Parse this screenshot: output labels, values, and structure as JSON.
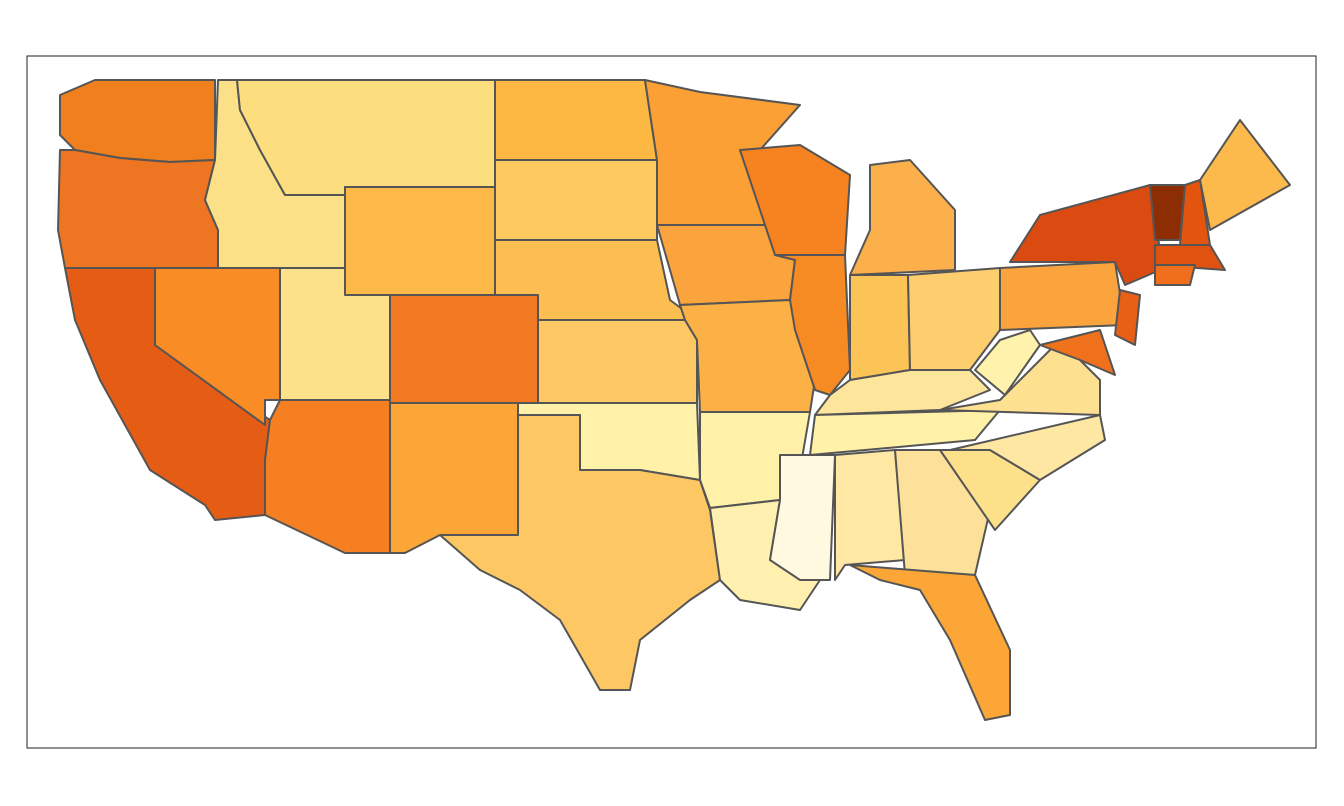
{
  "map": {
    "regions": [
      {
        "color": "#f07f1e"
      },
      {
        "color": "#ee7522"
      },
      {
        "color": "#e55d14"
      },
      {
        "color": "#f98c25"
      },
      {
        "color": "#fce088"
      },
      {
        "color": "#fdde7f"
      },
      {
        "color": "#fcb948"
      },
      {
        "color": "#fde08a"
      },
      {
        "color": "#f07921"
      },
      {
        "color": "#f57f21"
      },
      {
        "color": "#fba637"
      },
      {
        "color": "#fcb843"
      },
      {
        "color": "#fdc961"
      },
      {
        "color": "#fcbe51"
      },
      {
        "color": "#fdc864"
      },
      {
        "color": "#fff1a8"
      },
      {
        "color": "#fdc864"
      },
      {
        "color": "#fba035"
      },
      {
        "color": "#fba33c"
      },
      {
        "color": "#fcb147"
      },
      {
        "color": "#fff1a8"
      },
      {
        "color": "#fff0b0"
      },
      {
        "color": "#f68320"
      },
      {
        "color": "#f68a23"
      },
      {
        "color": "#fcb04b"
      },
      {
        "color": "#fcc357"
      },
      {
        "color": "#fdce6d"
      },
      {
        "color": "#fde59c"
      },
      {
        "color": "#fff1a8"
      },
      {
        "color": "#fffadf"
      },
      {
        "color": "#fee8a4"
      },
      {
        "color": "#fde09a"
      },
      {
        "color": "#fba637"
      },
      {
        "color": "#fde08a"
      },
      {
        "color": "#fee7a3"
      },
      {
        "color": "#fde090"
      },
      {
        "color": "#fff2ad"
      },
      {
        "color": "#fba33c"
      },
      {
        "color": "#db4a11"
      },
      {
        "color": "#8c2d04"
      },
      {
        "color": "#e3540f"
      },
      {
        "color": "#fcb94c"
      },
      {
        "color": "#e0520f"
      },
      {
        "color": "#e85f16"
      },
      {
        "color": "#f0711c"
      },
      {
        "color": "#ef6f1c"
      }
    ]
  }
}
